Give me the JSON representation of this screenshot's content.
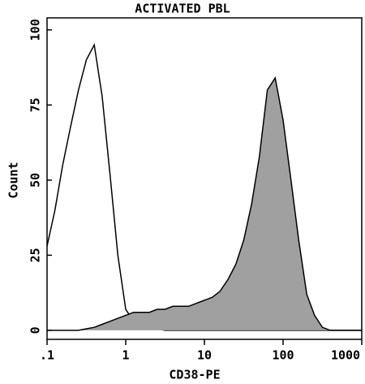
{
  "chart_data": {
    "type": "histogram-overlay",
    "title": "ACTIVATED PBL",
    "x_label": "CD38-PE",
    "y_label": "Count",
    "xscale": "log",
    "xlim": [
      0.1,
      1000
    ],
    "ylim": [
      -3,
      104
    ],
    "xticks": [
      {
        "value": 0.1,
        "label": ".1"
      },
      1,
      10,
      100,
      1000
    ],
    "yticks": [
      0,
      25,
      50,
      75,
      100
    ],
    "x": [
      0.1,
      0.126,
      0.158,
      0.2,
      0.251,
      0.316,
      0.398,
      0.501,
      0.631,
      0.794,
      1,
      1.26,
      1.58,
      2,
      2.51,
      3.16,
      3.98,
      5.01,
      6.31,
      7.94,
      10,
      12.6,
      15.8,
      20,
      25.1,
      31.6,
      39.8,
      50.1,
      63.1,
      79.4,
      100,
      126,
      158,
      200,
      251,
      316,
      398,
      501,
      631,
      794,
      1000
    ],
    "series": [
      {
        "color": "#000000",
        "fill": "none",
        "values": [
          28,
          40,
          55,
          68,
          80,
          90,
          95,
          78,
          52,
          25,
          7,
          3,
          1.5,
          1,
          0.5,
          0,
          0,
          0,
          0,
          0,
          0,
          0,
          0,
          0,
          0,
          0,
          0,
          0,
          0,
          0,
          0,
          0,
          0,
          0,
          0,
          0,
          0,
          0,
          0,
          0,
          0
        ]
      },
      {
        "color": "#000000",
        "fill": "#a0a0a0",
        "values": [
          0,
          0,
          0,
          0,
          0,
          0.5,
          1,
          2,
          3,
          4,
          5,
          6,
          6,
          6,
          7,
          7,
          8,
          8,
          8,
          9,
          10,
          11,
          13,
          17,
          22,
          30,
          42,
          58,
          80,
          84,
          70,
          50,
          30,
          12,
          5,
          1,
          0,
          0,
          0,
          0,
          0
        ]
      }
    ]
  }
}
